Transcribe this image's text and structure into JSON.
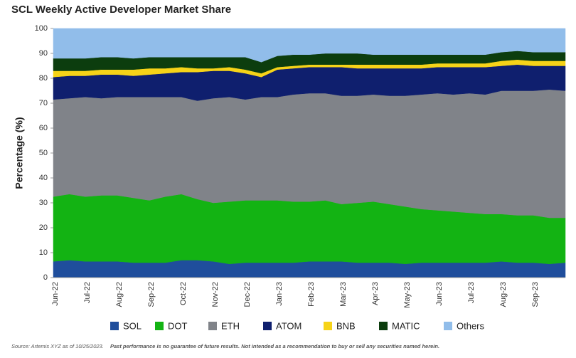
{
  "chart_data": {
    "type": "stacked_area",
    "title": "SCL Weekly Active Developer Market Share",
    "y_label": "Percentage (%)",
    "source": "Source: Artemis XYZ as of 10/25/2023.",
    "disclaimer": "Past performance is no guarantee of future results. Not intended as a recommendation to buy or sell any securities named herein.",
    "categories": [
      "Jun-22",
      null,
      "Jul-22",
      null,
      "Aug-22",
      null,
      "Sep-22",
      null,
      "Oct-22",
      null,
      "Nov-22",
      null,
      "Dec-22",
      null,
      "Jan-23",
      null,
      "Feb-23",
      null,
      "Mar-23",
      null,
      "Apr-23",
      null,
      "May-23",
      null,
      "Jun-23",
      null,
      "Jul-23",
      null,
      "Aug-23",
      null,
      "Sep-23",
      null,
      null
    ],
    "ylim": [
      0,
      100
    ],
    "yticks": [
      0,
      10,
      20,
      30,
      40,
      50,
      60,
      70,
      80,
      90,
      100
    ],
    "grid": false,
    "legend": "bottom",
    "series": [
      {
        "name": "SOL",
        "color": "#1f4e9c",
        "values": [
          6.5,
          7,
          6.5,
          6.5,
          6.5,
          6,
          6,
          6,
          7,
          7,
          6.5,
          5.5,
          6,
          6,
          6,
          6,
          6.5,
          6.5,
          6.5,
          6,
          6,
          6,
          5.5,
          6,
          6,
          6,
          6,
          6,
          6.5,
          6,
          6,
          5.5,
          6
        ]
      },
      {
        "name": "DOT",
        "color": "#13b313",
        "values": [
          26,
          26.5,
          26,
          26.5,
          26.5,
          26,
          25,
          26.5,
          26.5,
          24.5,
          23.5,
          25,
          25,
          25,
          25,
          24.5,
          24,
          24.5,
          23,
          24,
          24.5,
          23.5,
          23,
          21.5,
          21,
          20.5,
          20,
          19.5,
          19,
          19,
          19,
          18.5,
          18
        ]
      },
      {
        "name": "ETH",
        "color": "#808389",
        "values": [
          39,
          38.5,
          40,
          39,
          39.5,
          40.5,
          41.5,
          40,
          39,
          39.5,
          42,
          42,
          40.5,
          41.5,
          41.5,
          43,
          43.5,
          43,
          43.5,
          43,
          43,
          43.5,
          44.5,
          46,
          47,
          47,
          48,
          48,
          49.5,
          50,
          50,
          51.5,
          51
        ]
      },
      {
        "name": "ATOM",
        "color": "#0f1f6e",
        "values": [
          9,
          9,
          8.5,
          9.5,
          9,
          8.5,
          9,
          9.5,
          10,
          11.5,
          11,
          10.5,
          10.5,
          8,
          11,
          10.5,
          10.5,
          10.5,
          11.5,
          11,
          10.5,
          11,
          11,
          10.5,
          10.5,
          11,
          10.5,
          11,
          10,
          10.5,
          10,
          9.5,
          10
        ]
      },
      {
        "name": "BNB",
        "color": "#f6d318",
        "values": [
          2.5,
          2,
          2,
          2,
          2,
          2.5,
          2.5,
          2,
          2,
          1.5,
          1,
          1.5,
          1.5,
          1.5,
          1,
          1,
          1,
          1,
          1,
          1.5,
          1.5,
          1.5,
          1.5,
          1.5,
          1.5,
          1.5,
          1.5,
          1.5,
          2,
          2,
          2,
          2,
          2
        ]
      },
      {
        "name": "MATIC",
        "color": "#0c3d0e",
        "values": [
          5,
          5,
          5,
          5,
          5,
          4.5,
          4.5,
          4.5,
          4,
          4.5,
          4.5,
          4,
          5,
          4.5,
          4.5,
          4.5,
          4,
          4.5,
          4.5,
          4.5,
          4,
          4,
          4,
          4,
          3.5,
          3.5,
          3.5,
          3.5,
          3.5,
          3.5,
          3.5,
          3.5,
          3.5
        ]
      },
      {
        "name": "Others",
        "color": "#91bdea",
        "values": [
          12,
          12,
          12,
          11.5,
          11.5,
          12,
          11.5,
          11.5,
          11.5,
          11.5,
          11.5,
          11.5,
          11.5,
          13.5,
          11,
          10.5,
          10.5,
          10,
          10,
          10,
          10.5,
          10.5,
          10.5,
          10.5,
          10.5,
          10.5,
          10.5,
          10.5,
          9.5,
          9,
          9.5,
          9.5,
          9.5
        ]
      }
    ]
  }
}
